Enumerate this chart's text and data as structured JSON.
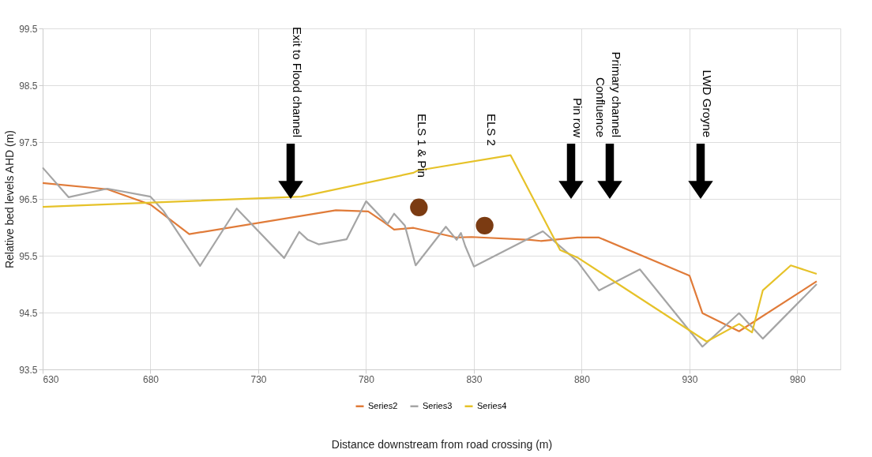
{
  "chart_data": {
    "type": "line",
    "xlabel": "Distance downstream from road crossing (m)",
    "ylabel": "Relative bed levels AHD (m)",
    "xlim": [
      630,
      1000
    ],
    "xticks": [
      630,
      680,
      730,
      780,
      830,
      880,
      930,
      980
    ],
    "ylim": [
      93.5,
      99.5
    ],
    "yticks": [
      93.5,
      94.5,
      95.5,
      96.5,
      97.5,
      98.5,
      99.5
    ],
    "grid": true,
    "legend": "bottom",
    "marker": "none",
    "line_style": "solid",
    "series": [
      {
        "name": "Series2",
        "color": "#e07b39",
        "x": [
          630,
          660,
          680,
          698,
          766,
          781,
          788,
          793,
          802,
          822,
          829,
          856,
          861,
          878,
          888,
          930,
          936,
          953,
          989
        ],
        "values": [
          96.78,
          96.67,
          96.4,
          95.88,
          96.3,
          96.28,
          96.1,
          95.96,
          95.99,
          95.82,
          95.83,
          95.78,
          95.76,
          95.82,
          95.82,
          95.15,
          94.49,
          94.17,
          95.05
        ]
      },
      {
        "name": "Series3",
        "color": "#a5a5a5",
        "x": [
          630,
          642,
          660,
          680,
          686,
          703,
          720,
          742,
          749,
          753,
          758,
          771,
          780,
          790,
          793,
          798,
          803,
          817,
          822,
          824,
          826,
          830,
          862,
          878,
          888,
          907,
          936,
          953,
          964,
          989
        ],
        "values": [
          97.05,
          96.53,
          96.68,
          96.54,
          96.29,
          95.32,
          96.33,
          95.46,
          95.92,
          95.78,
          95.7,
          95.79,
          96.46,
          96.06,
          96.24,
          96.03,
          95.33,
          96.01,
          95.78,
          95.9,
          95.67,
          95.31,
          95.93,
          95.4,
          94.89,
          95.26,
          93.9,
          94.49,
          94.04,
          95.0
        ]
      },
      {
        "name": "Series4",
        "color": "#e6c229",
        "x": [
          630,
          750,
          802,
          804,
          847,
          870,
          878,
          938,
          953,
          959,
          964,
          977,
          989
        ],
        "values": [
          96.36,
          96.54,
          96.96,
          97.0,
          97.27,
          95.6,
          95.47,
          93.99,
          94.3,
          94.15,
          94.89,
          95.33,
          95.18
        ]
      },
      {
        "type": "scatter",
        "color": "#7b3b12",
        "marker": "circle",
        "x": [
          804.5,
          835
        ],
        "values": [
          96.35,
          96.03
        ]
      }
    ],
    "annotations": [
      "Exit to Flood channel",
      "ELS 1 & Pin",
      "ELS 2",
      "Pin row",
      "Primary channel\nConfluence",
      "LWD Groyne"
    ]
  }
}
